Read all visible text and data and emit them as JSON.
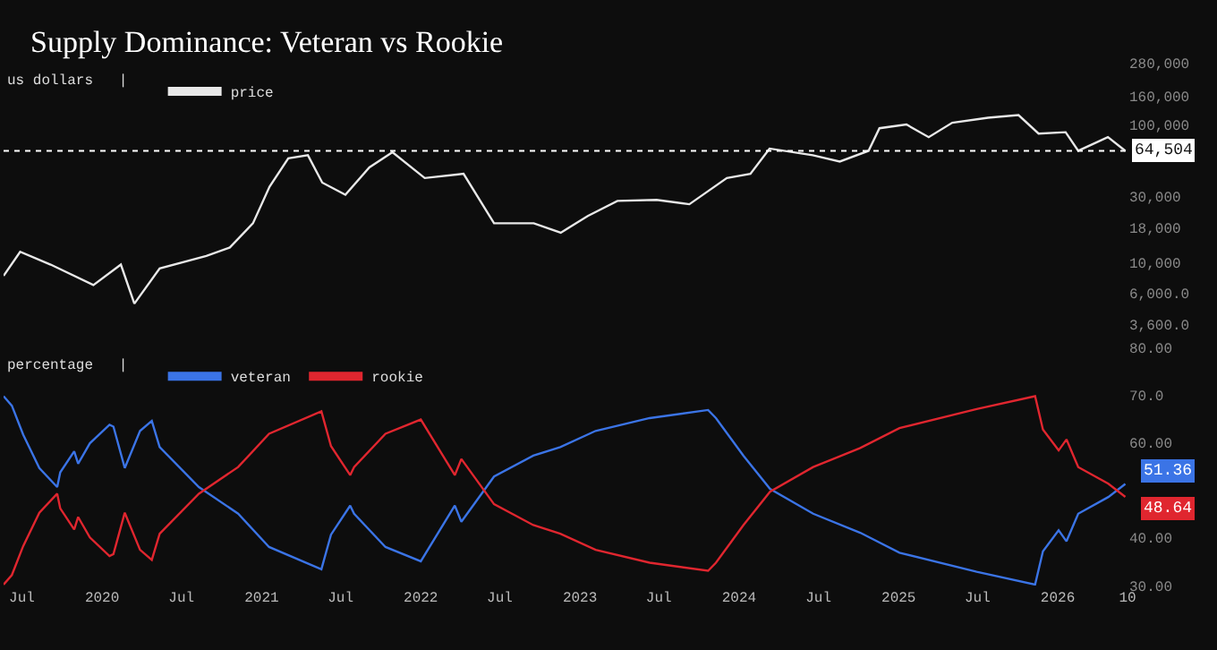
{
  "chart_data": [
    {
      "type": "line",
      "title": "Supply Dominance: Veteran vs Rookie",
      "ylabel": "us dollars",
      "legend_title": "|",
      "log": true,
      "legend": "top left",
      "tick_labels": "y",
      "grid": false,
      "x": [
        "2019-05-20",
        "2019-06-27",
        "2019-09-05",
        "2019-12-12",
        "2020-02-13",
        "2020-03-15",
        "2020-05-12",
        "2020-08-27",
        "2020-10-20",
        "2020-12-12",
        "2021-01-19",
        "2021-03-03",
        "2021-04-17",
        "2021-05-20",
        "2021-07-12",
        "2021-09-05",
        "2021-10-28",
        "2022-01-10",
        "2022-04-09",
        "2022-06-18",
        "2022-09-17",
        "2022-11-18",
        "2023-01-19",
        "2023-03-28",
        "2023-06-26",
        "2023-09-09",
        "2023-12-04",
        "2024-01-27",
        "2024-03-11",
        "2024-06-18",
        "2024-08-19",
        "2024-10-24",
        "2024-11-18",
        "2025-01-19",
        "2025-03-11",
        "2025-05-04",
        "2025-07-25",
        "2025-10-03",
        "2025-11-18",
        "2026-01-19",
        "2026-02-17",
        "2026-04-26",
        "2026-06-05"
      ],
      "series": [
        {
          "name": "price",
          "color": "#e8e8e8",
          "values": [
            8050,
            12000,
            9700,
            6900,
            9700,
            5060,
            9100,
            11200,
            12900,
            19300,
            35500,
            57000,
            60000,
            38000,
            31000,
            49000,
            63000,
            41000,
            44000,
            19300,
            19300,
            16500,
            21800,
            28000,
            28500,
            26500,
            41000,
            44000,
            67000,
            60000,
            54000,
            64500,
            94000,
            100000,
            81000,
            103000,
            112000,
            117000,
            86000,
            88000,
            64500,
            81000,
            64504
          ]
        }
      ],
      "xlim": [
        "2019-05-20",
        "2026-06-10"
      ],
      "ylim": [
        3600,
        280000
      ],
      "yticks": [
        {
          "value": 3600,
          "label": "3,600.0"
        },
        {
          "value": 6000,
          "label": "6,000.0"
        },
        {
          "value": 10000,
          "label": "10,000"
        },
        {
          "value": 18000,
          "label": "18,000"
        },
        {
          "value": 30000,
          "label": "30,000"
        },
        {
          "value": 100000,
          "label": "100,000"
        },
        {
          "value": 160000,
          "label": "160,000"
        },
        {
          "value": 280000,
          "label": "280,000"
        }
      ],
      "ref_lines": [
        {
          "axis": "y",
          "value": 64504,
          "label": "64,504",
          "color": "#ffffff",
          "line_style": "dotted"
        }
      ]
    },
    {
      "type": "line",
      "ylabel": "percentage",
      "legend_title": "|",
      "legend": "top left",
      "grid": false,
      "x": [
        "2019-05-20",
        "2019-06-08",
        "2019-07-04",
        "2019-08-10",
        "2019-09-20",
        "2019-09-27",
        "2019-10-29",
        "2019-11-07",
        "2019-12-04",
        "2020-01-18",
        "2020-01-27",
        "2020-02-22",
        "2020-03-28",
        "2020-04-24",
        "2020-05-12",
        "2020-08-10",
        "2020-11-08",
        "2021-01-18",
        "2021-05-18",
        "2021-06-09",
        "2021-07-23",
        "2021-08-01",
        "2021-10-12",
        "2022-01-01",
        "2022-03-20",
        "2022-04-04",
        "2022-06-18",
        "2022-09-16",
        "2022-11-17",
        "2023-02-06",
        "2023-06-10",
        "2023-10-22",
        "2023-11-09",
        "2024-01-11",
        "2024-03-12",
        "2024-06-19",
        "2024-10-05",
        "2025-01-03",
        "2025-06-29",
        "2025-11-10",
        "2025-11-28",
        "2026-01-03",
        "2026-01-21",
        "2026-02-17",
        "2026-04-27",
        "2026-06-05"
      ],
      "series": [
        {
          "name": "veteran",
          "color": "#3b74e6",
          "values": [
            69.8,
            67.8,
            61.7,
            54.7,
            50.7,
            53.8,
            58.2,
            55.6,
            59.9,
            63.8,
            63.4,
            54.7,
            62.5,
            64.6,
            59.1,
            50.7,
            45.1,
            38.1,
            33.4,
            40.7,
            46.8,
            45.1,
            38.1,
            35.1,
            46.8,
            43.4,
            52.9,
            57.3,
            59.1,
            62.5,
            65.2,
            66.9,
            65.2,
            57.3,
            50.3,
            45.1,
            41.1,
            36.9,
            32.9,
            30.2,
            37.2,
            41.6,
            39.3,
            45.1,
            48.6,
            51.36
          ],
          "value_labels": [
            null,
            null,
            null,
            null,
            null,
            null,
            null,
            null,
            null,
            null,
            null,
            null,
            null,
            null,
            null,
            null,
            null,
            null,
            null,
            null,
            null,
            null,
            null,
            null,
            null,
            null,
            null,
            null,
            null,
            null,
            null,
            null,
            null,
            null,
            null,
            null,
            null,
            null,
            null,
            null,
            null,
            null,
            null,
            null,
            null,
            "51.36"
          ]
        },
        {
          "name": "rookie",
          "color": "#e0262f",
          "values": [
            30.2,
            32.2,
            38.3,
            45.3,
            49.3,
            46.2,
            41.8,
            44.4,
            40.1,
            36.2,
            36.6,
            45.3,
            37.5,
            35.4,
            40.9,
            49.3,
            54.9,
            61.9,
            66.6,
            59.3,
            53.2,
            54.9,
            61.9,
            64.9,
            53.2,
            56.6,
            47.1,
            42.7,
            40.9,
            37.5,
            34.8,
            33.1,
            34.8,
            42.7,
            49.7,
            54.9,
            58.9,
            63.1,
            67.1,
            69.8,
            62.8,
            58.4,
            60.7,
            54.9,
            51.4,
            48.64
          ],
          "value_labels": [
            null,
            null,
            null,
            null,
            null,
            null,
            null,
            null,
            null,
            null,
            null,
            null,
            null,
            null,
            null,
            null,
            null,
            null,
            null,
            null,
            null,
            null,
            null,
            null,
            null,
            null,
            null,
            null,
            null,
            null,
            null,
            null,
            null,
            null,
            null,
            null,
            null,
            null,
            null,
            null,
            null,
            null,
            null,
            null,
            null,
            "48.64"
          ]
        }
      ],
      "xlim": [
        "2019-05-20",
        "2026-06-10"
      ],
      "xticks": [
        {
          "value": "2019-07-01",
          "label": "Jul"
        },
        {
          "value": "2020-01-01",
          "label": "2020"
        },
        {
          "value": "2020-07-01",
          "label": "Jul"
        },
        {
          "value": "2021-01-01",
          "label": "2021"
        },
        {
          "value": "2021-07-01",
          "label": "Jul"
        },
        {
          "value": "2022-01-01",
          "label": "2022"
        },
        {
          "value": "2022-07-01",
          "label": "Jul"
        },
        {
          "value": "2023-01-01",
          "label": "2023"
        },
        {
          "value": "2023-07-01",
          "label": "Jul"
        },
        {
          "value": "2024-01-01",
          "label": "2024"
        },
        {
          "value": "2024-07-01",
          "label": "Jul"
        },
        {
          "value": "2025-01-01",
          "label": "2025"
        },
        {
          "value": "2025-07-01",
          "label": "Jul"
        },
        {
          "value": "2026-01-01",
          "label": "2026"
        },
        {
          "value": "2026-06-10",
          "label": "10"
        }
      ],
      "ylim": [
        30,
        80
      ],
      "yticks": [
        {
          "value": 30,
          "label": "30.00"
        },
        {
          "value": 40,
          "label": "40.00"
        },
        {
          "value": 60,
          "label": "60.00"
        },
        {
          "value": 70,
          "label": "70.0"
        },
        {
          "value": 80,
          "label": "80.00"
        }
      ]
    }
  ]
}
